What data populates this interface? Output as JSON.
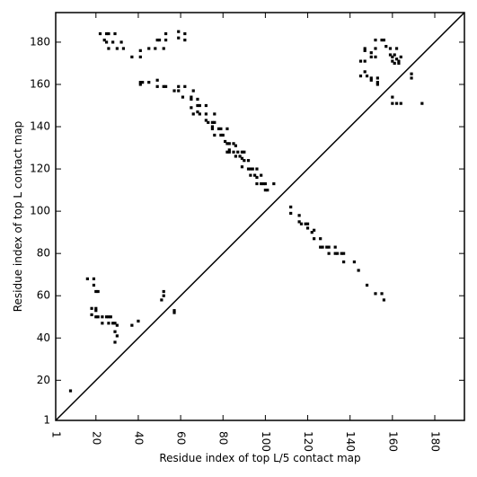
{
  "chart_data": {
    "type": "scatter",
    "xlabel": "Residue index of top L/5 contact map",
    "ylabel": "Residue index of top L contact map",
    "xlim": [
      1,
      194
    ],
    "ylim": [
      1,
      194
    ],
    "xticks": [
      1,
      20,
      40,
      60,
      80,
      100,
      120,
      140,
      160,
      180
    ],
    "yticks": [
      1,
      20,
      40,
      60,
      80,
      100,
      120,
      140,
      160,
      180
    ],
    "xtick_rotation": -90,
    "diagonal_line": true,
    "grid": false,
    "marker": "square",
    "color": "#000000",
    "series": [
      {
        "points": [
          [
            8,
            15
          ],
          [
            22,
            184
          ],
          [
            25,
            184
          ],
          [
            26,
            184
          ],
          [
            29,
            184
          ],
          [
            24,
            181
          ],
          [
            25,
            180
          ],
          [
            28,
            180
          ],
          [
            32,
            180
          ],
          [
            26,
            177
          ],
          [
            30,
            177
          ],
          [
            33,
            177
          ],
          [
            37,
            173
          ],
          [
            41,
            173
          ],
          [
            41,
            176
          ],
          [
            45,
            177
          ],
          [
            48,
            177
          ],
          [
            49,
            181
          ],
          [
            50,
            181
          ],
          [
            53,
            181
          ],
          [
            53,
            184
          ],
          [
            52,
            177
          ],
          [
            59,
            185
          ],
          [
            59,
            182
          ],
          [
            62,
            181
          ],
          [
            62,
            184
          ],
          [
            41,
            160
          ],
          [
            41,
            161
          ],
          [
            42,
            161
          ],
          [
            45,
            161
          ],
          [
            49,
            159
          ],
          [
            49,
            162
          ],
          [
            52,
            159
          ],
          [
            53,
            159
          ],
          [
            57,
            157
          ],
          [
            59,
            159
          ],
          [
            59,
            157
          ],
          [
            62,
            159
          ],
          [
            61,
            154
          ],
          [
            65,
            153
          ],
          [
            65,
            154
          ],
          [
            66,
            157
          ],
          [
            68,
            153
          ],
          [
            68,
            150
          ],
          [
            69,
            150
          ],
          [
            72,
            150
          ],
          [
            65,
            149
          ],
          [
            68,
            147
          ],
          [
            66,
            146
          ],
          [
            69,
            146
          ],
          [
            72,
            146
          ],
          [
            72,
            143
          ],
          [
            73,
            142
          ],
          [
            75,
            142
          ],
          [
            76,
            142
          ],
          [
            76,
            146
          ],
          [
            75,
            140
          ],
          [
            75,
            139
          ],
          [
            76,
            136
          ],
          [
            78,
            139
          ],
          [
            79,
            139
          ],
          [
            79,
            136
          ],
          [
            80,
            136
          ],
          [
            82,
            139
          ],
          [
            81,
            133
          ],
          [
            82,
            132
          ],
          [
            83,
            132
          ],
          [
            85,
            132
          ],
          [
            86,
            131
          ],
          [
            83,
            129
          ],
          [
            82,
            128
          ],
          [
            83,
            128
          ],
          [
            85,
            128
          ],
          [
            86,
            126
          ],
          [
            87,
            128
          ],
          [
            88,
            126
          ],
          [
            89,
            128
          ],
          [
            90,
            128
          ],
          [
            89,
            125
          ],
          [
            90,
            124
          ],
          [
            92,
            124
          ],
          [
            89,
            121
          ],
          [
            92,
            120
          ],
          [
            93,
            120
          ],
          [
            94,
            120
          ],
          [
            96,
            120
          ],
          [
            93,
            117
          ],
          [
            95,
            117
          ],
          [
            96,
            116
          ],
          [
            98,
            117
          ],
          [
            96,
            113
          ],
          [
            98,
            113
          ],
          [
            99,
            113
          ],
          [
            100,
            113
          ],
          [
            100,
            110
          ],
          [
            101,
            110
          ],
          [
            104,
            113
          ],
          [
            112,
            102
          ],
          [
            112,
            99
          ],
          [
            116,
            98
          ],
          [
            116,
            95
          ],
          [
            117,
            94
          ],
          [
            119,
            94
          ],
          [
            120,
            94
          ],
          [
            120,
            92
          ],
          [
            122,
            90
          ],
          [
            123,
            91
          ],
          [
            123,
            87
          ],
          [
            126,
            87
          ],
          [
            126,
            83
          ],
          [
            127,
            83
          ],
          [
            129,
            83
          ],
          [
            130,
            83
          ],
          [
            133,
            83
          ],
          [
            130,
            80
          ],
          [
            133,
            80
          ],
          [
            134,
            80
          ],
          [
            136,
            80
          ],
          [
            137,
            80
          ],
          [
            137,
            76
          ],
          [
            142,
            76
          ],
          [
            144,
            72
          ],
          [
            148,
            65
          ],
          [
            152,
            61
          ],
          [
            155,
            61
          ],
          [
            156,
            58
          ],
          [
            16,
            68
          ],
          [
            19,
            68
          ],
          [
            19,
            65
          ],
          [
            20,
            62
          ],
          [
            21,
            62
          ],
          [
            18,
            54
          ],
          [
            20,
            54
          ],
          [
            20,
            53
          ],
          [
            18,
            51
          ],
          [
            20,
            50
          ],
          [
            21,
            50
          ],
          [
            23,
            50
          ],
          [
            25,
            50
          ],
          [
            26,
            50
          ],
          [
            27,
            50
          ],
          [
            23,
            47
          ],
          [
            26,
            47
          ],
          [
            28,
            47
          ],
          [
            29,
            47
          ],
          [
            30,
            46
          ],
          [
            29,
            43
          ],
          [
            30,
            41
          ],
          [
            29,
            38
          ],
          [
            37,
            46
          ],
          [
            40,
            48
          ],
          [
            51,
            58
          ],
          [
            52,
            60
          ],
          [
            52,
            62
          ],
          [
            57,
            52
          ],
          [
            57,
            53
          ],
          [
            145,
            171
          ],
          [
            147,
            171
          ],
          [
            147,
            176
          ],
          [
            147,
            177
          ],
          [
            150,
            173
          ],
          [
            150,
            175
          ],
          [
            152,
            173
          ],
          [
            152,
            177
          ],
          [
            152,
            181
          ],
          [
            155,
            181
          ],
          [
            156,
            181
          ],
          [
            157,
            178
          ],
          [
            159,
            177
          ],
          [
            159,
            174
          ],
          [
            160,
            173
          ],
          [
            161,
            174
          ],
          [
            162,
            172
          ],
          [
            160,
            171
          ],
          [
            161,
            170
          ],
          [
            163,
            170
          ],
          [
            163,
            171
          ],
          [
            164,
            173
          ],
          [
            162,
            177
          ],
          [
            150,
            162
          ],
          [
            150,
            163
          ],
          [
            153,
            163
          ],
          [
            153,
            161
          ],
          [
            153,
            160
          ],
          [
            147,
            166
          ],
          [
            148,
            164
          ],
          [
            145,
            164
          ],
          [
            160,
            154
          ],
          [
            160,
            151
          ],
          [
            162,
            151
          ],
          [
            164,
            151
          ],
          [
            169,
            163
          ],
          [
            169,
            165
          ],
          [
            174,
            151
          ]
        ]
      }
    ]
  }
}
